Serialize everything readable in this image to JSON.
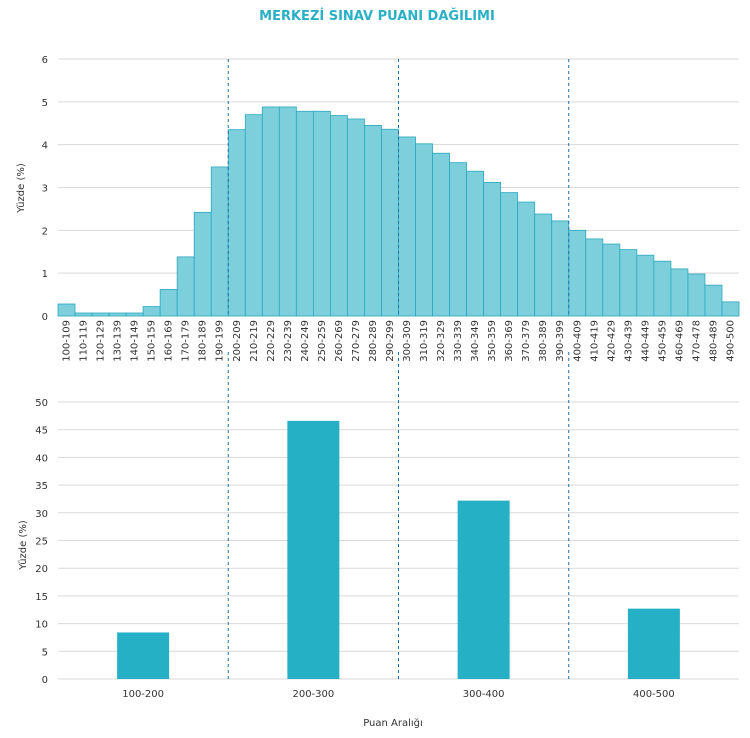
{
  "chart_data": [
    {
      "type": "bar",
      "title": "MERKEZİ SINAV PUANI DAĞILIMI",
      "xlabel": "",
      "ylabel": "Yüzde (%)",
      "ylim": [
        0,
        6
      ],
      "yticks": [
        0,
        1,
        2,
        3,
        4,
        5,
        6
      ],
      "categories": [
        "100-109",
        "110-119",
        "120-129",
        "130-139",
        "140-149",
        "150-159",
        "160-169",
        "170-179",
        "180-189",
        "190-199",
        "200-209",
        "210-219",
        "220-229",
        "230-239",
        "240-249",
        "250-259",
        "260-269",
        "270-279",
        "280-289",
        "290-299",
        "300-309",
        "310-319",
        "320-329",
        "330-339",
        "340-349",
        "350-359",
        "360-369",
        "370-379",
        "380-389",
        "390-399",
        "400-409",
        "410-419",
        "420-429",
        "430-439",
        "440-449",
        "450-459",
        "460-469",
        "470-478",
        "480-489",
        "490-500"
      ],
      "values": [
        0.28,
        0.07,
        0.07,
        0.07,
        0.07,
        0.22,
        0.62,
        1.38,
        2.42,
        3.48,
        4.35,
        4.7,
        4.88,
        4.88,
        4.78,
        4.78,
        4.68,
        4.6,
        4.45,
        4.36,
        4.18,
        4.02,
        3.8,
        3.58,
        3.38,
        3.12,
        2.88,
        2.66,
        2.38,
        2.22,
        2.0,
        1.8,
        1.68,
        1.55,
        1.42,
        1.28,
        1.1,
        0.98,
        0.72,
        0.33
      ],
      "dividers_after_category": [
        "190-199",
        "290-299",
        "390-399"
      ],
      "color": "#7ccfdb",
      "edge_color": "#2aa8bf"
    },
    {
      "type": "bar",
      "title": "",
      "xlabel": "Puan Aralığı",
      "ylabel": "Yüzde (%)",
      "ylim": [
        0,
        50
      ],
      "yticks": [
        0,
        5,
        10,
        15,
        20,
        25,
        30,
        35,
        40,
        45,
        50
      ],
      "categories": [
        "100-200",
        "200-300",
        "300-400",
        "400-500"
      ],
      "values": [
        8.4,
        46.6,
        32.2,
        12.7
      ],
      "color": "#25b0c6"
    }
  ],
  "colors": {
    "grid": "#d9d9d9",
    "divider": "#1f6fa8",
    "text": "#333333",
    "title": "#2ab0c5"
  }
}
